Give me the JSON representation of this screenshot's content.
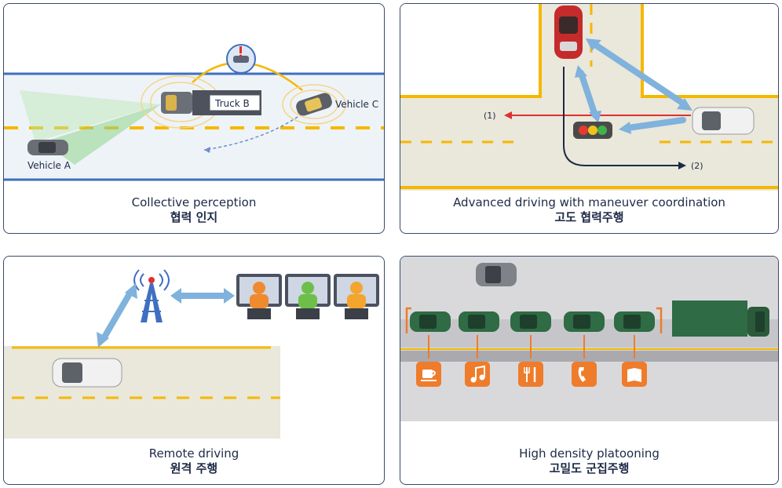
{
  "panels": [
    {
      "caption_en": "Collective perception",
      "caption_ko": "협력 인지",
      "labels": {
        "truck": "Truck B",
        "vehicle_c": "Vehicle C",
        "vehicle_a": "Vehicle A"
      }
    },
    {
      "caption_en": "Advanced driving with maneuver coordination",
      "caption_ko": "고도 협력주행",
      "labels": {
        "path1": "(1)",
        "path2": "(2)"
      }
    },
    {
      "caption_en": "Remote driving",
      "caption_ko": "원격 주행"
    },
    {
      "caption_en": "High density platooning",
      "caption_ko": "고밀도 군집주행"
    }
  ],
  "colors": {
    "border": "#3b4b6b",
    "lane_yellow": "#f5b800",
    "road_blue": "#3f6fc1",
    "arrow_blue": "#7fb2dc",
    "alert_red": "#e03030",
    "platoon_green": "#2f6b44",
    "service_orange": "#ee7c2a"
  },
  "icons": [
    "car-icon",
    "truck-icon",
    "traffic-light-icon",
    "antenna-tower-icon",
    "operator-monitor-icon",
    "coffee-icon",
    "music-icon",
    "dining-icon",
    "phone-icon",
    "book-icon"
  ]
}
